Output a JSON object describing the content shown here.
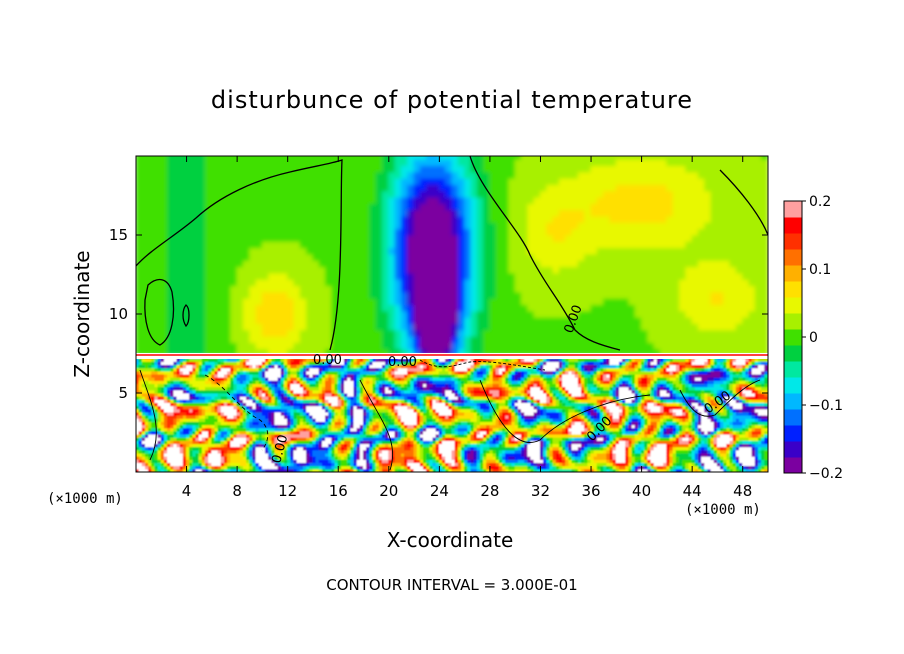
{
  "chart_data": {
    "type": "heatmap",
    "title": "disturbunce of potential temperature",
    "xlabel": "X-coordinate",
    "ylabel": "Z-coordinate",
    "x_unit": "(×1000 m)",
    "x_unit_right": "(×1000 m)",
    "xlim": [
      0,
      50
    ],
    "ylim": [
      0,
      20
    ],
    "x_ticks": [
      4,
      8,
      12,
      16,
      20,
      24,
      28,
      32,
      36,
      40,
      44,
      48
    ],
    "y_ticks": [
      5,
      10,
      15
    ],
    "colorbar": {
      "vmin": -0.2,
      "vmax": 0.2,
      "tick_values": [
        0.2,
        0.1,
        0,
        -0.1,
        -0.2
      ],
      "tick_labels": [
        "0.2",
        "0.1",
        "0",
        "−0.1",
        "−0.2"
      ],
      "colors": [
        "#7b00a0",
        "#3a00c8",
        "#0020ff",
        "#0070ff",
        "#00b8ff",
        "#00e8e8",
        "#00e8a0",
        "#00d040",
        "#40e000",
        "#a8f000",
        "#e8f800",
        "#ffe000",
        "#ffb000",
        "#ff7000",
        "#ff3000",
        "#ff0000",
        "#ffa0a0"
      ]
    },
    "contour_labels": [
      "0.00",
      "0.00",
      "0.00",
      "0.00",
      "0.00",
      "0.00"
    ],
    "contour_interval_text": "CONTOUR INTERVAL = 3.000E-01"
  }
}
